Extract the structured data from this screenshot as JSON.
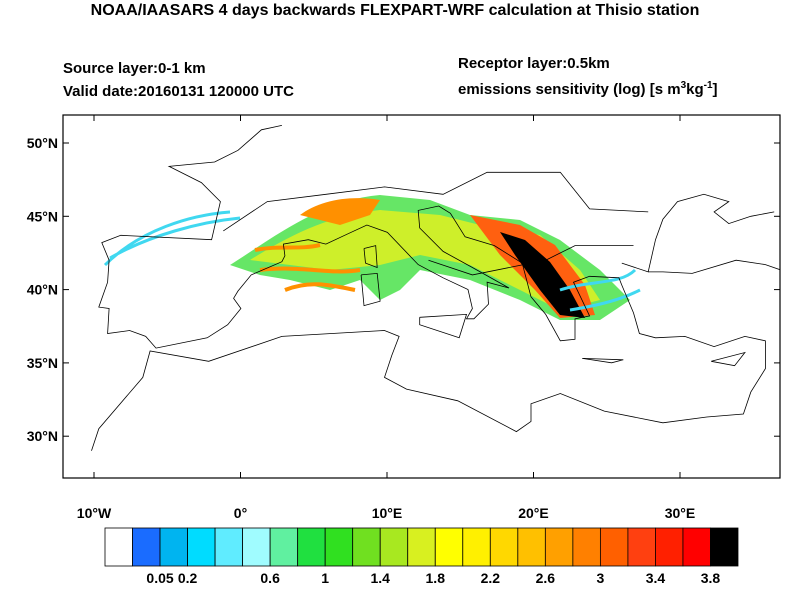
{
  "header": {
    "title": "NOAA/IAASARS 4 days backwards FLEXPART-WRF calculation at Thisio station",
    "source_layer": "Source layer:0-1 km",
    "valid_date": "Valid date:20160131 120000 UTC",
    "receptor_layer": "Receptor layer:0.5km",
    "units": [
      "emissions sensitivity (log) [s m",
      "3",
      "kg",
      "-1",
      "]"
    ]
  },
  "map": {
    "lat_labels": [
      "50°N",
      "45°N",
      "40°N",
      "35°N",
      "30°N"
    ],
    "lon_labels": [
      "10°W",
      "0°",
      "10°E",
      "20°E",
      "30°E"
    ]
  },
  "colorbar": {
    "colors": [
      "#ffffff",
      "#1a6cff",
      "#00b4f0",
      "#00dcff",
      "#60ecff",
      "#a0fcff",
      "#60f0a0",
      "#20e040",
      "#30e020",
      "#70e020",
      "#a8e820",
      "#d8f020",
      "#ffff00",
      "#fff000",
      "#ffd800",
      "#ffc000",
      "#ffa000",
      "#ff8000",
      "#ff6000",
      "#ff4010",
      "#ff2000",
      "#ff0000",
      "#000000"
    ],
    "labels": [
      "0.05",
      "0.2",
      "0.6",
      "1",
      "1.4",
      "1.8",
      "2.2",
      "2.6",
      "3",
      "3.4",
      "3.8"
    ]
  }
}
